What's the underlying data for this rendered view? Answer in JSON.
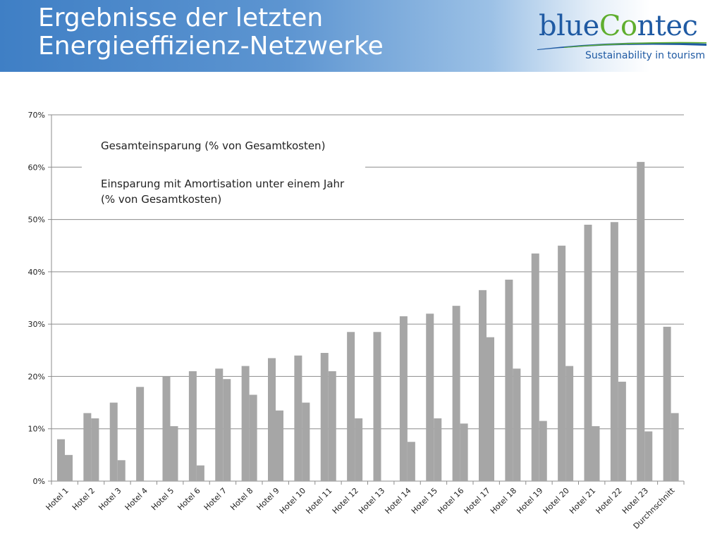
{
  "header": {
    "title_line1": "Ergebnisse der letzten",
    "title_line2": "Energieeffizienz-Netzwerke"
  },
  "logo": {
    "word_part1": "blue",
    "word_part2": "C",
    "word_part3": "o",
    "word_part4": "ntec",
    "tagline": "Sustainability in tourism"
  },
  "colors": {
    "header_blue": "#3f7fc5",
    "logo_blue": "#1f5aa3",
    "logo_green": "#5fae2e",
    "bar_gray": "#a6a6a6",
    "grid_gray": "#8c8c8c"
  },
  "chart_data": {
    "type": "bar",
    "categories": [
      "Hotel 1",
      "Hotel 2",
      "Hotel 3",
      "Hotel 4",
      "Hotel 5",
      "Hotel 6",
      "Hotel 7",
      "Hotel 8",
      "Hotel 9",
      "Hotel 10",
      "Hotel 11",
      "Hotel 12",
      "Hotel 13",
      "Hotel 14",
      "Hotel 15",
      "Hotel 16",
      "Hotel 17",
      "Hotel 18",
      "Hotel 19",
      "Hotel 20",
      "Hotel 21",
      "Hotel 22",
      "Hotel 23",
      "Durchnschnitt"
    ],
    "series": [
      {
        "name": "Gesamteinsparung (% von Gesamtkosten)",
        "values": [
          8,
          13,
          15,
          18,
          20,
          21,
          21.5,
          22,
          23.5,
          24,
          24.5,
          28.5,
          28.5,
          31.5,
          32,
          33.5,
          36.5,
          38.5,
          43.5,
          45,
          49,
          49.5,
          61,
          29.5
        ]
      },
      {
        "name": "Einsparung mit Amortisation unter einem Jahr (% von Gesamtkosten)",
        "values": [
          5,
          12,
          4,
          0,
          10.5,
          3,
          19.5,
          16.5,
          13.5,
          15,
          21,
          12,
          0,
          7.5,
          12,
          11,
          27.5,
          21.5,
          11.5,
          22,
          10.5,
          19,
          9.5,
          13
        ]
      }
    ],
    "legend_lines": [
      "Gesamteinsparung (% von Gesamtkosten)",
      "Einsparung mit Amortisation unter einem Jahr",
      "(% von Gesamtkosten)"
    ],
    "y_ticks": [
      "0%",
      "10%",
      "20%",
      "30%",
      "40%",
      "50%",
      "60%",
      "70%"
    ],
    "ylim": [
      0,
      70
    ],
    "grid": true,
    "legend_position": "top-left",
    "title": "",
    "xlabel": "",
    "ylabel": ""
  }
}
